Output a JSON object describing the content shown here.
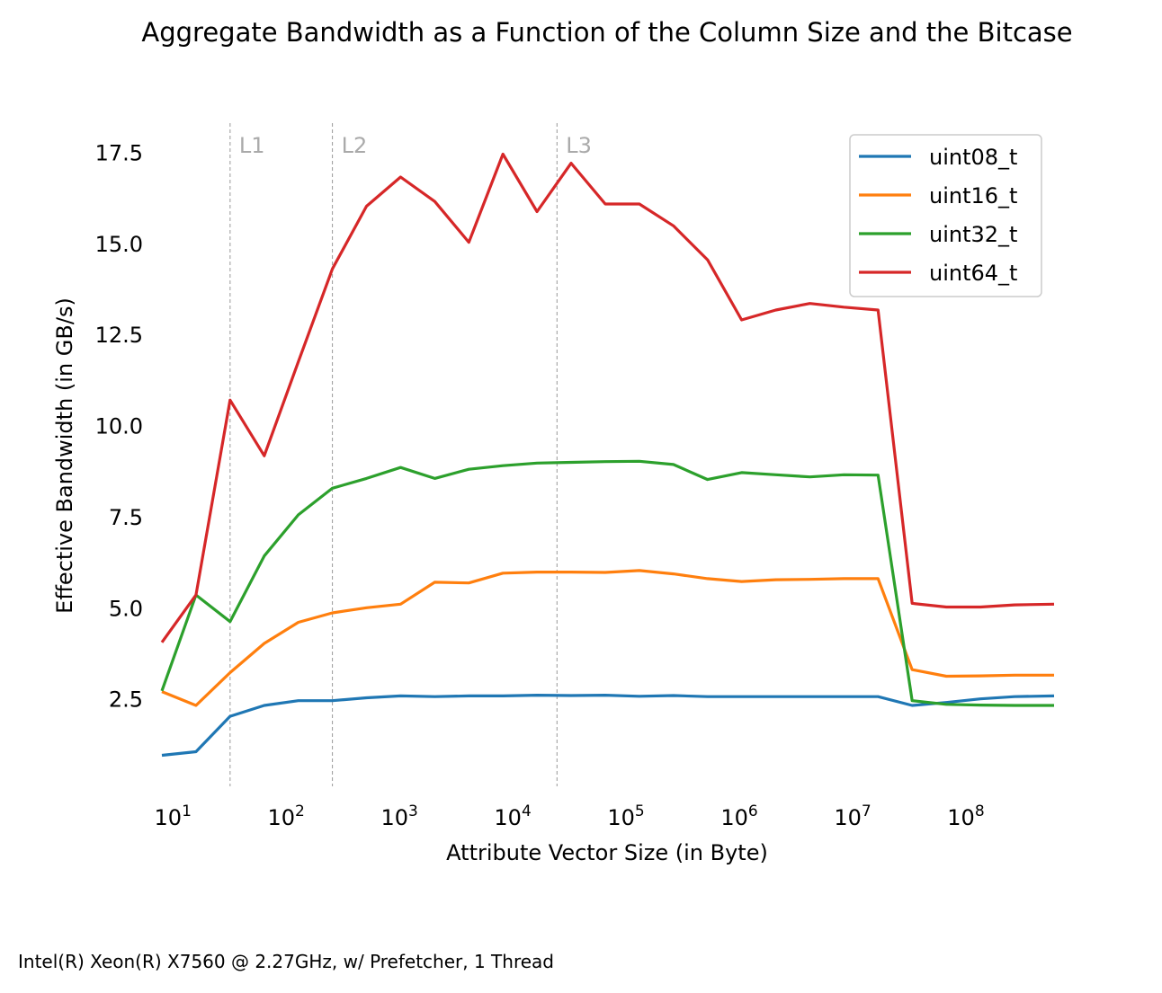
{
  "chart_data": {
    "type": "line",
    "title": "Aggregate Bandwidth as a Function of the Column Size and the Bitcase",
    "xlabel": "Attribute Vector Size (in Byte)",
    "ylabel": "Effective Bandwidth (in GB/s)",
    "footnote": "Intel(R) Xeon(R) X7560 @ 2.27GHz, w/ Prefetcher, 1 Thread",
    "x_scale": "log",
    "xlim": [
      8,
      600000000
    ],
    "ylim": [
      0.1,
      18.3
    ],
    "x_ticks": [
      {
        "value": 10,
        "base": "10",
        "exp": "1"
      },
      {
        "value": 100,
        "base": "10",
        "exp": "2"
      },
      {
        "value": 1000,
        "base": "10",
        "exp": "3"
      },
      {
        "value": 10000,
        "base": "10",
        "exp": "4"
      },
      {
        "value": 100000,
        "base": "10",
        "exp": "5"
      },
      {
        "value": 1000000,
        "base": "10",
        "exp": "6"
      },
      {
        "value": 10000000,
        "base": "10",
        "exp": "7"
      },
      {
        "value": 100000000,
        "base": "10",
        "exp": "8"
      }
    ],
    "y_ticks": [
      {
        "value": 2.5,
        "label": "2.5"
      },
      {
        "value": 5.0,
        "label": "5.0"
      },
      {
        "value": 7.5,
        "label": "7.5"
      },
      {
        "value": 10.0,
        "label": "10.0"
      },
      {
        "value": 12.5,
        "label": "12.5"
      },
      {
        "value": 15.0,
        "label": "15.0"
      },
      {
        "value": 17.5,
        "label": "17.5"
      }
    ],
    "grid": false,
    "legend_position": "top-right",
    "cache_lines": [
      {
        "label": "L1",
        "x": 32
      },
      {
        "label": "L2",
        "x": 256
      },
      {
        "label": "L3",
        "x": 24576
      }
    ],
    "x": [
      8,
      16,
      32,
      64,
      128,
      256,
      512,
      1024,
      2048,
      4096,
      8192,
      16384,
      32768,
      65536,
      131072,
      262144,
      524288,
      1048576,
      2097152,
      4194304,
      8388608,
      16777216,
      33554432,
      67108864,
      134217728,
      268435456,
      600000000
    ],
    "series": [
      {
        "name": "uint08_t",
        "color": "#1f77b4",
        "values": [
          0.95,
          1.05,
          2.02,
          2.32,
          2.45,
          2.45,
          2.53,
          2.58,
          2.56,
          2.58,
          2.58,
          2.6,
          2.59,
          2.6,
          2.57,
          2.59,
          2.56,
          2.56,
          2.56,
          2.56,
          2.56,
          2.56,
          2.32,
          2.4,
          2.5,
          2.56,
          2.58
        ]
      },
      {
        "name": "uint16_t",
        "color": "#ff7f0e",
        "values": [
          2.7,
          2.32,
          3.22,
          4.02,
          4.6,
          4.86,
          5.0,
          5.1,
          5.7,
          5.68,
          5.95,
          5.98,
          5.98,
          5.97,
          6.02,
          5.93,
          5.8,
          5.72,
          5.77,
          5.78,
          5.8,
          5.8,
          3.3,
          3.12,
          3.13,
          3.15,
          3.15
        ]
      },
      {
        "name": "uint32_t",
        "color": "#2ca02c",
        "values": [
          2.72,
          5.35,
          4.62,
          6.42,
          7.55,
          8.28,
          8.55,
          8.85,
          8.55,
          8.8,
          8.9,
          8.97,
          8.99,
          9.01,
          9.02,
          8.93,
          8.52,
          8.71,
          8.65,
          8.59,
          8.65,
          8.64,
          2.45,
          2.35,
          2.33,
          2.32,
          2.32
        ]
      },
      {
        "name": "uint64_t",
        "color": "#d62728",
        "values": [
          4.05,
          5.35,
          10.7,
          9.17,
          11.75,
          14.3,
          16.02,
          16.82,
          16.15,
          15.03,
          17.45,
          15.87,
          17.2,
          16.08,
          16.08,
          15.48,
          14.55,
          12.9,
          13.17,
          13.35,
          13.25,
          13.17,
          5.12,
          5.02,
          5.02,
          5.08,
          5.1
        ]
      }
    ]
  }
}
